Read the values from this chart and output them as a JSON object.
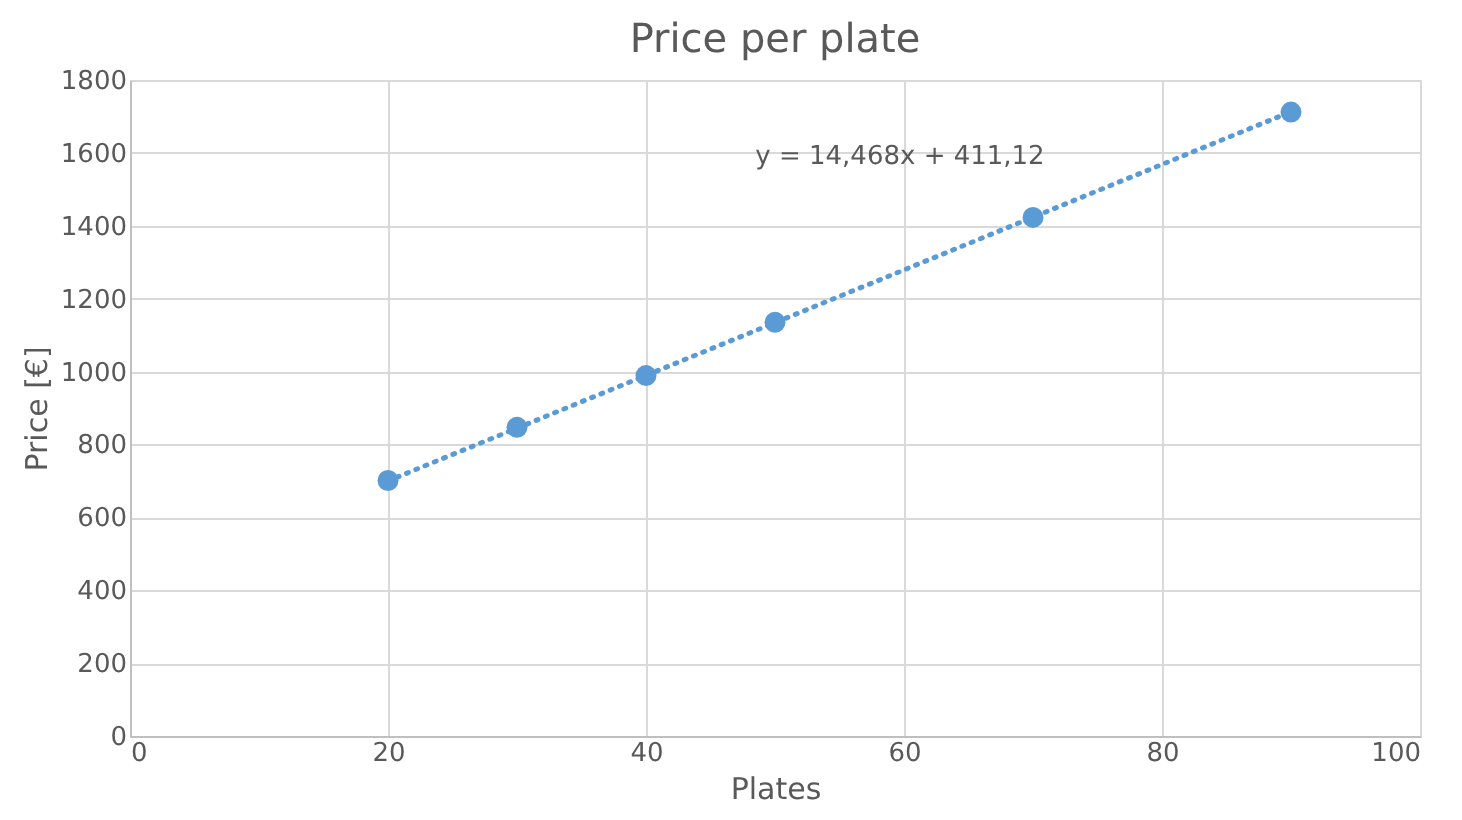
{
  "chart_data": {
    "type": "scatter",
    "title": "Price per plate",
    "xlabel": "Plates",
    "ylabel": "Price [€]",
    "x": [
      20,
      30,
      40,
      50,
      70,
      90
    ],
    "series": [
      {
        "color": "#5b9bd5",
        "values": [
          701,
          847,
          989,
          1135,
          1423,
          1712
        ],
        "marker": "circle"
      },
      {
        "type": "line",
        "color": "#5b9bd5",
        "x": [
          20,
          90
        ],
        "values": [
          700,
          1713
        ],
        "line_style": "dotted",
        "marker": "none"
      }
    ],
    "xlim": [
      0,
      100
    ],
    "xticks": [
      0,
      20,
      40,
      60,
      80,
      100
    ],
    "ylim": [
      0,
      1800
    ],
    "yticks": [
      0,
      200,
      400,
      600,
      800,
      1000,
      1200,
      1400,
      1600,
      1800
    ],
    "grid": true,
    "annotations": [
      "y = 14,468x + 411,12"
    ]
  }
}
